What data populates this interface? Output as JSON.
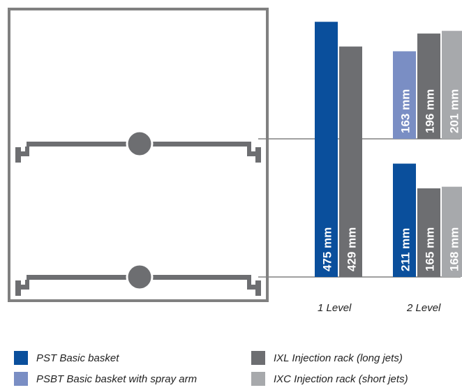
{
  "chart_data": {
    "type": "bar",
    "unit": "mm",
    "categories": [
      "1 Level",
      "2 Level"
    ],
    "groups": [
      {
        "category": "1 Level",
        "stacks": [
          {
            "position": "lower",
            "bars": [
              {
                "series": "PST Basic basket",
                "value": 475,
                "label": "475 mm"
              },
              {
                "series": "IXL Injection rack (long jets)",
                "value": 429,
                "label": "429 mm"
              }
            ]
          }
        ]
      },
      {
        "category": "2 Level",
        "stacks": [
          {
            "position": "upper",
            "bars": [
              {
                "series": "PSBT Basic basket with spray arm",
                "value": 163,
                "label": "163 mm"
              },
              {
                "series": "IXL Injection rack (long jets)",
                "value": 196,
                "label": "196 mm"
              },
              {
                "series": "IXC Injection rack (short jets)",
                "value": 201,
                "label": "201 mm"
              }
            ]
          },
          {
            "position": "lower",
            "bars": [
              {
                "series": "PST Basic basket",
                "value": 211,
                "label": "211 mm"
              },
              {
                "series": "IXL Injection rack (long jets)",
                "value": 165,
                "label": "165 mm"
              },
              {
                "series": "IXC Injection rack (short jets)",
                "value": 168,
                "label": "168 mm"
              }
            ]
          }
        ]
      }
    ],
    "legend": {
      "placement": "bottom",
      "entries": [
        {
          "name": "PST Basic basket",
          "color": "#0a4f9c"
        },
        {
          "name": "PSBT Basic basket with spray arm",
          "color": "#7a8ec4"
        },
        {
          "name": "IXL Injection rack (long jets)",
          "color": "#6d6e71"
        },
        {
          "name": "IXC Injection rack (short jets)",
          "color": "#a7a9ac"
        }
      ]
    },
    "grid": false,
    "colors": {
      "cabinet_frame": "#808080",
      "rail": "#6d6e71",
      "leader_line": "#808080"
    }
  }
}
